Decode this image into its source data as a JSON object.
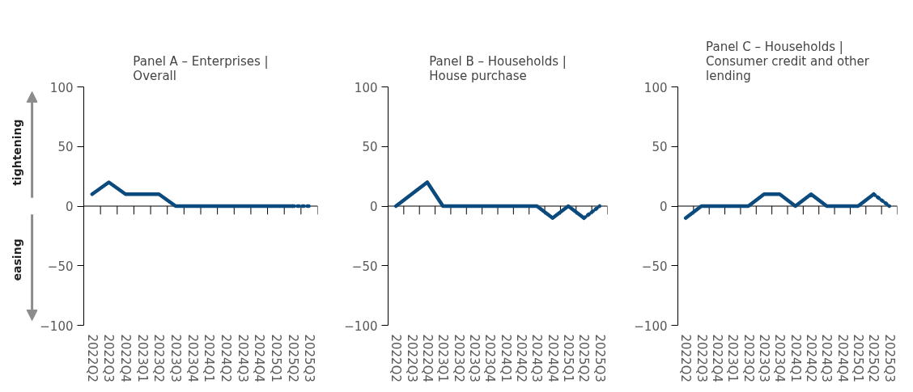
{
  "chart_data": [
    {
      "type": "line",
      "title": "Panel A – Enterprises | Overall",
      "categories": [
        "2022Q2",
        "2022Q3",
        "2022Q4",
        "2023Q1",
        "2023Q2",
        "2023Q3",
        "2023Q4",
        "2024Q1",
        "2024Q2",
        "2024Q3",
        "2024Q4",
        "2025Q1",
        "2025Q2",
        "2025Q3"
      ],
      "series": [
        {
          "color": "#0b4a7d",
          "line_style": "solid",
          "values": [
            10,
            20,
            10,
            10,
            10,
            0,
            0,
            0,
            0,
            0,
            0,
            0,
            0,
            null
          ]
        },
        {
          "color": "#0b4a7d",
          "line_style": "dotted",
          "values": [
            null,
            null,
            null,
            null,
            null,
            null,
            null,
            null,
            null,
            null,
            null,
            null,
            0,
            0
          ]
        }
      ],
      "ylim": [
        -100,
        100
      ],
      "yticks": [
        -100,
        -50,
        0,
        50,
        100
      ],
      "grid": false,
      "marker": "none",
      "ref_lines": [
        {
          "axis": "y",
          "value": 0,
          "color": "#000000"
        }
      ],
      "annotations": [
        "tightening",
        "easing"
      ]
    },
    {
      "type": "line",
      "title": "Panel B – Households | House purchase",
      "categories": [
        "2022Q2",
        "2022Q3",
        "2022Q4",
        "2023Q1",
        "2023Q2",
        "2023Q3",
        "2023Q4",
        "2024Q1",
        "2024Q2",
        "2024Q3",
        "2024Q4",
        "2025Q1",
        "2025Q2",
        "2025Q3"
      ],
      "series": [
        {
          "color": "#0b4a7d",
          "line_style": "solid",
          "values": [
            0,
            10,
            20,
            0,
            0,
            0,
            0,
            0,
            0,
            0,
            -10,
            0,
            -10,
            null
          ]
        },
        {
          "color": "#0b4a7d",
          "line_style": "dotted",
          "values": [
            null,
            null,
            null,
            null,
            null,
            null,
            null,
            null,
            null,
            null,
            null,
            null,
            -10,
            0
          ]
        }
      ],
      "ylim": [
        -100,
        100
      ],
      "yticks": [
        -100,
        -50,
        0,
        50,
        100
      ],
      "grid": false,
      "marker": "none",
      "ref_lines": [
        {
          "axis": "y",
          "value": 0,
          "color": "#000000"
        }
      ]
    },
    {
      "type": "line",
      "title": "Panel C – Households | Consumer credit and other lending",
      "categories": [
        "2022Q2",
        "2022Q3",
        "2022Q4",
        "2023Q1",
        "2023Q2",
        "2023Q3",
        "2023Q4",
        "2024Q1",
        "2024Q2",
        "2024Q3",
        "2024Q4",
        "2025Q1",
        "2025Q2",
        "2025Q3"
      ],
      "series": [
        {
          "color": "#0b4a7d",
          "line_style": "solid",
          "values": [
            -10,
            0,
            0,
            0,
            0,
            10,
            10,
            0,
            10,
            0,
            0,
            0,
            10,
            null
          ]
        },
        {
          "color": "#0b4a7d",
          "line_style": "dotted",
          "values": [
            null,
            null,
            null,
            null,
            null,
            null,
            null,
            null,
            null,
            null,
            null,
            null,
            10,
            0
          ]
        }
      ],
      "ylim": [
        -100,
        100
      ],
      "yticks": [
        -100,
        -50,
        0,
        50,
        100
      ],
      "grid": false,
      "marker": "none",
      "ref_lines": [
        {
          "axis": "y",
          "value": 0,
          "color": "#000000"
        }
      ]
    }
  ]
}
